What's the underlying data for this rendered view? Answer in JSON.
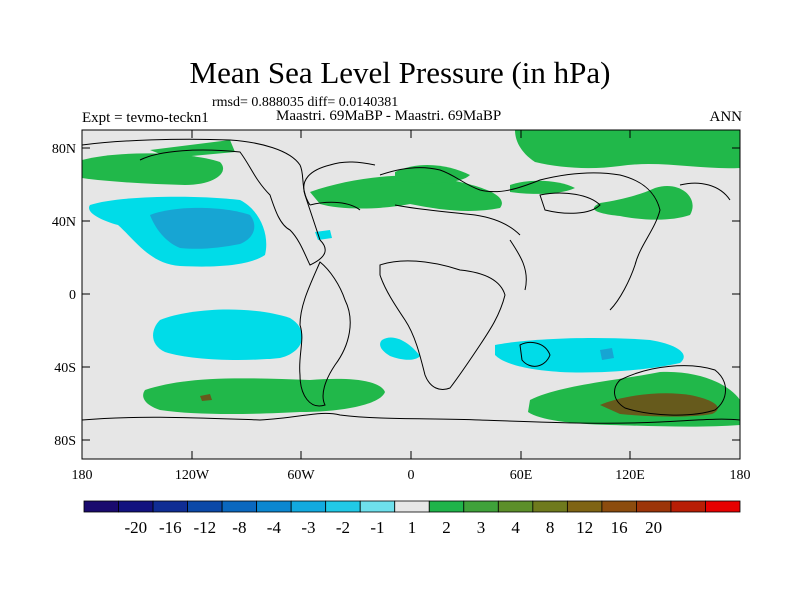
{
  "title": "Mean Sea Level Pressure (in hPa)",
  "stats": "rmsd= 0.888035 diff= 0.0140381",
  "experiment": "Expt = tevmo-teckn1",
  "comparison": "Maastri. 69MaBP - Maastri. 69MaBP",
  "season": "ANN",
  "lat_ticks": [
    "80N",
    "40N",
    "0",
    "40S",
    "80S"
  ],
  "lon_ticks": [
    "180",
    "120W",
    "60W",
    "0",
    "60E",
    "120E",
    "180"
  ],
  "colorbar": {
    "colors": [
      "#1a0a6e",
      "#12127f",
      "#0f2d94",
      "#0b49a8",
      "#0a68bf",
      "#0b87d0",
      "#12aadf",
      "#21c9e6",
      "#6ee0ec",
      "#e6e6e6",
      "#1fb44a",
      "#3fa23a",
      "#5c8f2a",
      "#6f7a1d",
      "#7f6414",
      "#8c4c0e",
      "#9c3509",
      "#b81e05",
      "#e60000"
    ],
    "labels": [
      "-20",
      "-16",
      "-12",
      "-8",
      "-4",
      "-3",
      "-2",
      "-1",
      "1",
      "2",
      "3",
      "4",
      "8",
      "12",
      "16",
      "20"
    ]
  },
  "legend_colors": {
    "neutral": "#e6e6e6",
    "cyan": "#00dce8",
    "blue": "#17a5d3",
    "green": "#21b84a",
    "brown": "#665a1c"
  }
}
